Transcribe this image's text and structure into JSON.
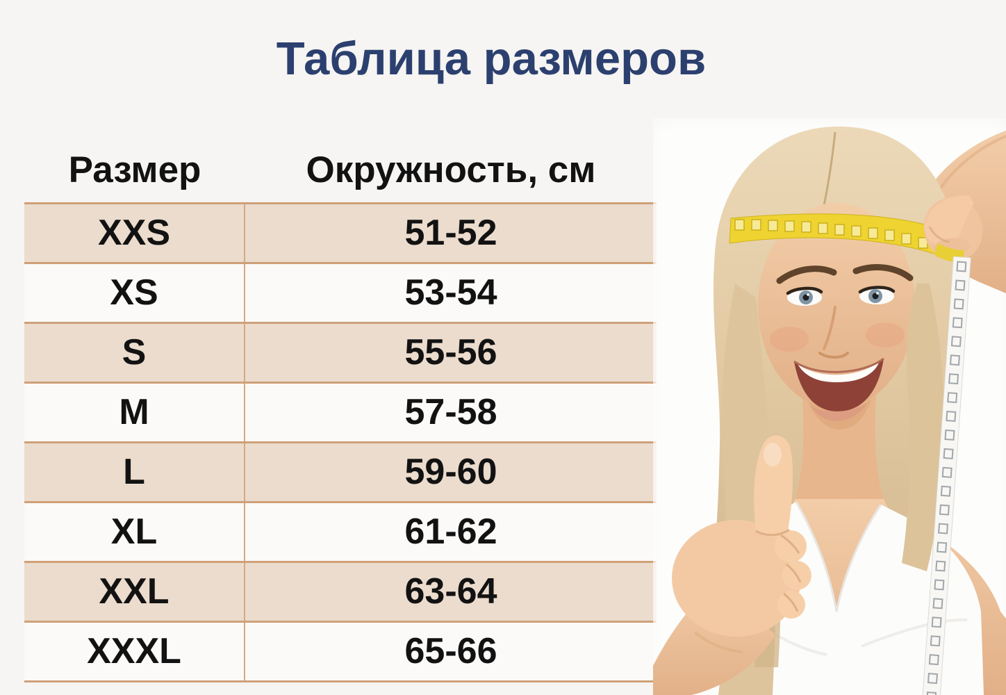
{
  "title": "Таблица размеров",
  "table": {
    "headers": [
      "Размер",
      "Окружность, см"
    ],
    "rows": [
      {
        "size": "XXS",
        "circumference": "51-52"
      },
      {
        "size": "XS",
        "circumference": "53-54"
      },
      {
        "size": "S",
        "circumference": "55-56"
      },
      {
        "size": "M",
        "circumference": "57-58"
      },
      {
        "size": "L",
        "circumference": "59-60"
      },
      {
        "size": "XL",
        "circumference": "61-62"
      },
      {
        "size": "XXL",
        "circumference": "63-64"
      },
      {
        "size": "XXXL",
        "circumference": "65-66"
      }
    ]
  },
  "photo": {
    "label": "Блондинка измеряет окружность головы жёлтой сантиметровой лентой и показывает большой палец вверх"
  },
  "colors": {
    "background": "#f6f5f3",
    "title": "#2c406f",
    "text": "#121212",
    "row_beige": "#ebdccd",
    "row_light": "#fbfaf8",
    "line_tan": "#cfa078",
    "tape_yellow": "#eed331"
  }
}
